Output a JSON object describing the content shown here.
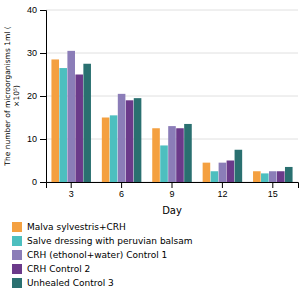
{
  "chart_data": {
    "type": "bar",
    "categories": [
      "3",
      "6",
      "9",
      "12",
      "15"
    ],
    "series": [
      {
        "name": "Malva sylvestris+CRH",
        "color": "#F4A040",
        "values": [
          28.5,
          15.0,
          12.5,
          4.5,
          2.5
        ]
      },
      {
        "name": "Salve dressing with peruvian balsam",
        "color": "#4DBFBF",
        "values": [
          26.5,
          15.5,
          8.5,
          2.5,
          2.0
        ]
      },
      {
        "name": "CRH (ethonol+water) Control 1",
        "color": "#8B7DB8",
        "values": [
          30.5,
          20.5,
          13.0,
          4.5,
          2.5
        ]
      },
      {
        "name": "CRH Control 2",
        "color": "#6B3A8A",
        "values": [
          25.0,
          19.0,
          12.5,
          5.0,
          2.5
        ]
      },
      {
        "name": "Unhealed Control 3",
        "color": "#2A7070",
        "values": [
          27.5,
          19.5,
          13.5,
          7.5,
          3.5
        ]
      }
    ],
    "xlabel": "Day",
    "ylabel": "The number of microorganisms 1ml (\n×10⁵)",
    "ylim": [
      0,
      40
    ],
    "yticks": [
      0,
      10,
      20,
      30,
      40
    ],
    "grid": true
  }
}
